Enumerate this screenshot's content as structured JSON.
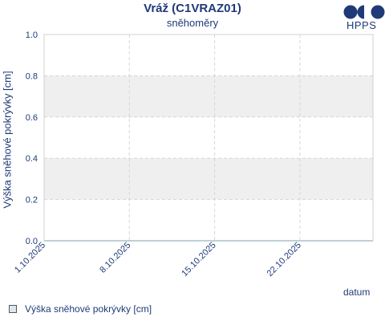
{
  "title": "Vráž (C1VRAZ01)",
  "subtitle": "sněhoměry",
  "logo_text": "HPPS",
  "chart_data": {
    "type": "line",
    "ylabel": "Výška sněhové pokrývky [cm]",
    "xlabel": "datum",
    "ylim": [
      0.0,
      1.0
    ],
    "yticks": [
      "0.0",
      "0.2",
      "0.4",
      "0.6",
      "0.8",
      "1.0"
    ],
    "xticks": [
      "1.10.2025",
      "8.10.2025",
      "15.10.2025",
      "22.10.2025"
    ],
    "xrange_days": [
      0,
      27
    ],
    "xtick_days": [
      0,
      7,
      14,
      21
    ],
    "grid": true,
    "band_color": "#efefef",
    "series": [
      {
        "name": "Výška sněhové pokrývky [cm]",
        "color": "#5aa0b8",
        "x_days": [
          0,
          27
        ],
        "values": [
          0.0,
          0.0
        ]
      }
    ],
    "legend": "bottom-left"
  }
}
